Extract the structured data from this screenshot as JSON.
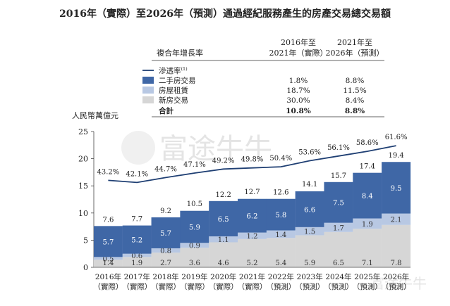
{
  "title": "2016年（實際）至2026年（預測）通過經紀服務產生的房產交易總交易額",
  "cagr_table": {
    "header_label": "複合年增長率",
    "col1_header": [
      "2016年至",
      "2021年（實際）"
    ],
    "col2_header": [
      "2021年至",
      "2026年（預測）"
    ],
    "legend_line_label": "滲透率",
    "legend_line_note": "(1)",
    "rows": [
      {
        "label": "二手房交易",
        "col1": "1.8%",
        "col2": "8.8%"
      },
      {
        "label": "房屋租賃",
        "col1": "18.7%",
        "col2": "11.5%"
      },
      {
        "label": "新房交易",
        "col1": "30.0%",
        "col2": "8.4%"
      },
      {
        "label": "合計",
        "col1": "10.8%",
        "col2": "8.8%"
      }
    ]
  },
  "watermark": "富途牛牛",
  "colors": {
    "second_hand": "#3f67a6",
    "rental": "#b8c8e3",
    "new_home": "#d6d6d6",
    "line": "#1f3f73"
  },
  "chart_data": {
    "type": "bar",
    "ylabel": "人民幣萬億元",
    "ylim": [
      0,
      25
    ],
    "yticks": [
      0,
      5,
      10,
      15,
      20,
      25
    ],
    "categories": [
      [
        "2016年",
        "（實際）"
      ],
      [
        "2017年",
        "（實際）"
      ],
      [
        "2018年",
        "（實際）"
      ],
      [
        "2019年",
        "（實際）"
      ],
      [
        "2020年",
        "（實際）"
      ],
      [
        "2021年",
        "（實際）"
      ],
      [
        "2022年",
        "（預測）"
      ],
      [
        "2023年",
        "（預測）"
      ],
      [
        "2024年",
        "（預測）"
      ],
      [
        "2025年",
        "（預測）"
      ],
      [
        "2026年",
        "（預測）"
      ]
    ],
    "series": [
      {
        "name": "新房交易",
        "values": [
          1.4,
          1.9,
          2.7,
          3.6,
          4.6,
          5.2,
          5.4,
          5.9,
          6.5,
          7.1,
          7.8
        ]
      },
      {
        "name": "房屋租賃",
        "values": [
          0.5,
          0.6,
          0.8,
          0.9,
          1.1,
          1.2,
          1.4,
          1.5,
          1.7,
          1.9,
          2.1
        ]
      },
      {
        "name": "二手房交易",
        "values": [
          5.7,
          5.2,
          5.7,
          5.9,
          6.5,
          6.2,
          5.8,
          6.6,
          7.5,
          8.4,
          9.5
        ]
      }
    ],
    "totals": [
      7.6,
      7.7,
      9.2,
      10.5,
      12.2,
      12.7,
      12.6,
      14.1,
      15.7,
      17.4,
      19.4
    ],
    "penetration": {
      "name": "滲透率",
      "labels": [
        "43.2%",
        "42.1%",
        "44.7%",
        "47.1%",
        "49.2%",
        "49.8%",
        "50.4%",
        "53.6%",
        "56.1%",
        "58.6%",
        "61.6%"
      ]
    }
  }
}
